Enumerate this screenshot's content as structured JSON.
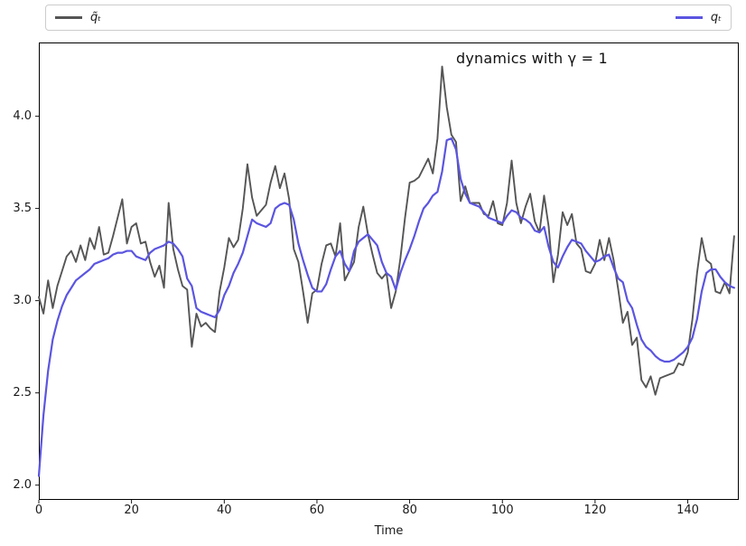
{
  "legend": {
    "items": [
      {
        "label": "q̃ₜ",
        "color": "#555555"
      },
      {
        "label": "qₜ",
        "color": "#5b55e0"
      }
    ]
  },
  "chart_data": {
    "type": "line",
    "title": "dynamics with γ = 1",
    "xlabel": "Time",
    "ylabel": "",
    "grid": false,
    "legend_position": "expanded box above axes, entries at far left and far right",
    "x_ticks": [
      0,
      20,
      40,
      60,
      80,
      100,
      120,
      140
    ],
    "y_ticks": [
      2.0,
      2.5,
      3.0,
      3.5,
      4.0
    ],
    "xlim": [
      0,
      151
    ],
    "ylim": [
      1.92,
      4.4
    ],
    "x_start": 0,
    "x_step": 1,
    "axis_color": "#000000",
    "series": [
      {
        "name": "q-tilde (noisy)",
        "label": "q̃ₜ",
        "color": "#555555",
        "width": 1.9,
        "values": [
          3.02,
          2.93,
          3.11,
          2.96,
          3.08,
          3.16,
          3.24,
          3.27,
          3.21,
          3.3,
          3.22,
          3.34,
          3.28,
          3.4,
          3.25,
          3.26,
          3.35,
          3.45,
          3.55,
          3.31,
          3.4,
          3.42,
          3.31,
          3.32,
          3.21,
          3.13,
          3.19,
          3.07,
          3.53,
          3.28,
          3.17,
          3.08,
          3.06,
          2.75,
          2.93,
          2.86,
          2.88,
          2.85,
          2.83,
          3.05,
          3.18,
          3.34,
          3.29,
          3.33,
          3.5,
          3.74,
          3.56,
          3.46,
          3.49,
          3.52,
          3.64,
          3.73,
          3.61,
          3.69,
          3.55,
          3.28,
          3.21,
          3.05,
          2.88,
          3.04,
          3.06,
          3.2,
          3.3,
          3.31,
          3.24,
          3.42,
          3.11,
          3.16,
          3.21,
          3.4,
          3.51,
          3.36,
          3.25,
          3.15,
          3.12,
          3.15,
          2.96,
          3.05,
          3.23,
          3.45,
          3.64,
          3.65,
          3.67,
          3.72,
          3.77,
          3.69,
          3.88,
          4.27,
          4.05,
          3.9,
          3.86,
          3.54,
          3.62,
          3.53,
          3.53,
          3.53,
          3.47,
          3.46,
          3.54,
          3.42,
          3.41,
          3.53,
          3.76,
          3.53,
          3.42,
          3.51,
          3.58,
          3.43,
          3.37,
          3.57,
          3.4,
          3.1,
          3.25,
          3.48,
          3.41,
          3.47,
          3.31,
          3.28,
          3.16,
          3.15,
          3.2,
          3.33,
          3.22,
          3.34,
          3.22,
          3.06,
          2.88,
          2.94,
          2.76,
          2.8,
          2.57,
          2.53,
          2.59,
          2.49,
          2.58,
          2.59,
          2.6,
          2.61,
          2.66,
          2.65,
          2.72,
          2.9,
          3.15,
          3.34,
          3.22,
          3.2,
          3.05,
          3.04,
          3.1,
          3.04,
          3.35
        ]
      },
      {
        "name": "q (smoothed)",
        "label": "qₜ",
        "color": "#5b55e0",
        "width": 2.2,
        "values": [
          2.05,
          2.38,
          2.62,
          2.79,
          2.89,
          2.97,
          3.03,
          3.07,
          3.11,
          3.13,
          3.15,
          3.17,
          3.2,
          3.21,
          3.22,
          3.23,
          3.25,
          3.26,
          3.26,
          3.27,
          3.27,
          3.24,
          3.23,
          3.22,
          3.26,
          3.28,
          3.29,
          3.3,
          3.32,
          3.31,
          3.28,
          3.24,
          3.12,
          3.08,
          2.96,
          2.94,
          2.93,
          2.92,
          2.91,
          2.95,
          3.03,
          3.08,
          3.15,
          3.2,
          3.26,
          3.35,
          3.44,
          3.42,
          3.41,
          3.4,
          3.42,
          3.5,
          3.52,
          3.53,
          3.52,
          3.44,
          3.31,
          3.22,
          3.14,
          3.07,
          3.05,
          3.05,
          3.09,
          3.17,
          3.24,
          3.27,
          3.2,
          3.16,
          3.27,
          3.32,
          3.34,
          3.36,
          3.33,
          3.3,
          3.21,
          3.15,
          3.13,
          3.06,
          3.15,
          3.22,
          3.28,
          3.35,
          3.43,
          3.5,
          3.53,
          3.57,
          3.59,
          3.7,
          3.87,
          3.88,
          3.82,
          3.66,
          3.58,
          3.53,
          3.52,
          3.51,
          3.48,
          3.45,
          3.44,
          3.43,
          3.42,
          3.46,
          3.49,
          3.48,
          3.45,
          3.44,
          3.42,
          3.38,
          3.37,
          3.4,
          3.29,
          3.21,
          3.18,
          3.24,
          3.29,
          3.33,
          3.32,
          3.31,
          3.27,
          3.24,
          3.21,
          3.22,
          3.24,
          3.25,
          3.18,
          3.12,
          3.1,
          3.0,
          2.96,
          2.87,
          2.79,
          2.75,
          2.73,
          2.7,
          2.68,
          2.67,
          2.67,
          2.68,
          2.7,
          2.72,
          2.75,
          2.8,
          2.9,
          3.05,
          3.15,
          3.17,
          3.17,
          3.13,
          3.1,
          3.08,
          3.07
        ]
      }
    ]
  }
}
